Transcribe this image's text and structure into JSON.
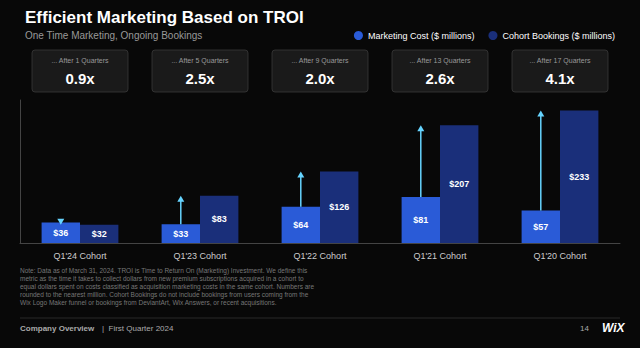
{
  "chart_data": {
    "type": "bar",
    "title": "Efficient Marketing Based on TROI",
    "subtitle": "One Time Marketing, Ongoing Bookings",
    "categories": [
      "Q1'24 Cohort",
      "Q1'23 Cohort",
      "Q1'22 Cohort",
      "Q1'21 Cohort",
      "Q1'20 Cohort"
    ],
    "series": [
      {
        "name": "Marketing Cost ($ millions)",
        "color": "#2a5bd7",
        "values": [
          36,
          33,
          64,
          81,
          57
        ],
        "value_labels": [
          "$36",
          "$33",
          "$64",
          "$81",
          "$57"
        ]
      },
      {
        "name": "Cohort Bookings ($ millions)",
        "color": "#1a2f7a",
        "values": [
          32,
          83,
          126,
          207,
          233
        ],
        "value_labels": [
          "$32",
          "$83",
          "$126",
          "$207",
          "$233"
        ]
      }
    ],
    "ylim": [
      0,
      251.64
    ],
    "grid": false,
    "legend": "top right",
    "data_labels": true,
    "tick_labels": "x",
    "annotations": [
      {
        "category": "Q1'24 Cohort",
        "text": "0.9x",
        "subtext": "... After 1 Quarters"
      },
      {
        "category": "Q1'23 Cohort",
        "text": "2.5x",
        "subtext": "... After 5 Quarters"
      },
      {
        "category": "Q1'22 Cohort",
        "text": "2.0x",
        "subtext": "... After 9 Quarters"
      },
      {
        "category": "Q1'21 Cohort",
        "text": "2.6x",
        "subtext": "... After 13 Quarters"
      },
      {
        "category": "Q1'20 Cohort",
        "text": "4.1x",
        "subtext": "... After 17 Quarters"
      }
    ],
    "notes": [
      "Note: Data as of March 31, 2024. TROI is Time to Return On (Marketing) Investment. We define this",
      "metric as the time it takes to collect dollars from new premium subscriptions acquired in a cohort to",
      "equal dollars spent on costs classified as acquisition marketing costs in the same cohort. Numbers are",
      "rounded to the nearest million. Cohort Bookings do not include bookings from users coming from the",
      "Wix Logo Maker funnel or bookings from DeviantArt, Wix Answers, or recent acquisitions."
    ],
    "footer": [
      "Company Overview",
      "|  First Quarter 2024",
      "14",
      "WiX"
    ]
  }
}
